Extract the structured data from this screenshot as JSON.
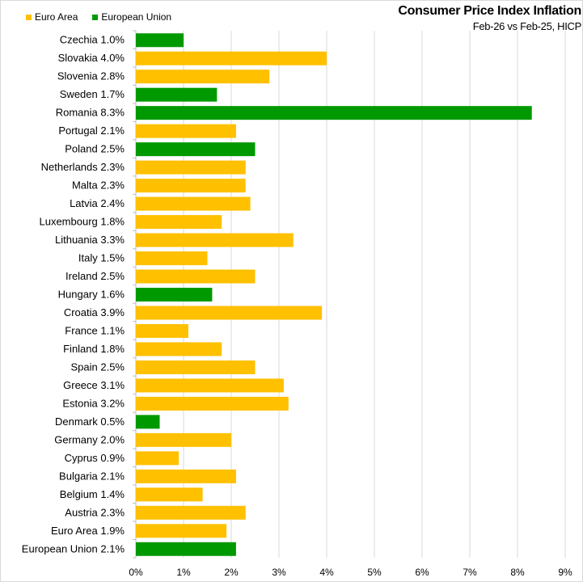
{
  "chart_data": {
    "type": "bar",
    "orientation": "horizontal",
    "title": "Consumer Price Index Inflation",
    "subtitle": "Feb-26 vs Feb-25, HICP",
    "xlabel": "",
    "ylabel": "",
    "xlim": [
      0,
      9
    ],
    "x_ticks": [
      "0%",
      "1%",
      "2%",
      "3%",
      "4%",
      "5%",
      "6%",
      "7%",
      "8%",
      "9%"
    ],
    "grid": "vertical",
    "legend_position": "top-left",
    "legend": [
      {
        "name": "Euro Area",
        "color": "#FFC000"
      },
      {
        "name": "European Union",
        "color": "#009900"
      }
    ],
    "categories": [
      "Czechia 1.0%",
      "Slovakia 4.0%",
      "Slovenia 2.8%",
      "Sweden 1.7%",
      "Romania 8.3%",
      "Portugal 2.1%",
      "Poland 2.5%",
      "Netherlands 2.3%",
      "Malta 2.3%",
      "Latvia 2.4%",
      "Luxembourg 1.8%",
      "Lithuania 3.3%",
      "Italy 1.5%",
      "Ireland 2.5%",
      "Hungary 1.6%",
      "Croatia 3.9%",
      "France 1.1%",
      "Finland 1.8%",
      "Spain 2.5%",
      "Greece 3.1%",
      "Estonia 3.2%",
      "Denmark 0.5%",
      "Germany 2.0%",
      "Cyprus 0.9%",
      "Bulgaria 2.1%",
      "Belgium 1.4%",
      "Austria 2.3%",
      "Euro Area 1.9%",
      "European Union 2.1%"
    ],
    "values": [
      1.0,
      4.0,
      2.8,
      1.7,
      8.3,
      2.1,
      2.5,
      2.3,
      2.3,
      2.4,
      1.8,
      3.3,
      1.5,
      2.5,
      1.6,
      3.9,
      1.1,
      1.8,
      2.5,
      3.1,
      3.2,
      0.5,
      2.0,
      0.9,
      2.1,
      1.4,
      2.3,
      1.9,
      2.1
    ],
    "groups": [
      "European Union",
      "Euro Area",
      "Euro Area",
      "European Union",
      "European Union",
      "Euro Area",
      "European Union",
      "Euro Area",
      "Euro Area",
      "Euro Area",
      "Euro Area",
      "Euro Area",
      "Euro Area",
      "Euro Area",
      "European Union",
      "Euro Area",
      "Euro Area",
      "Euro Area",
      "Euro Area",
      "Euro Area",
      "Euro Area",
      "European Union",
      "Euro Area",
      "Euro Area",
      "Euro Area",
      "Euro Area",
      "Euro Area",
      "Euro Area",
      "European Union"
    ]
  }
}
